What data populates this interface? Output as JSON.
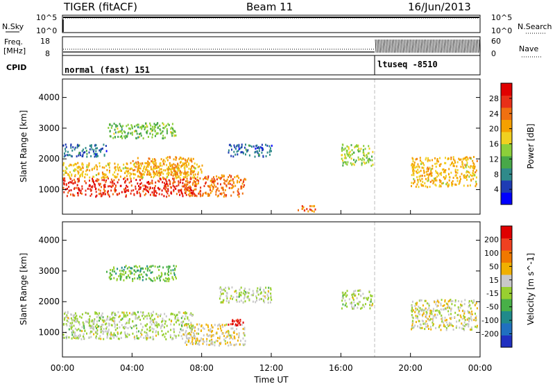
{
  "header": {
    "radar": "TIGER (fitACF)",
    "beam": "Beam 11",
    "date": "16/Jun/2013"
  },
  "param_panels": {
    "nsky": {
      "label": "N.Sky",
      "ticks": [
        "10^5",
        "10^0"
      ]
    },
    "nsearch": {
      "label": "N.Search"
    },
    "freq": {
      "label_line1": "Freq.",
      "label_line2": "[MHz]",
      "ticks": [
        "18",
        "8"
      ]
    },
    "nave": {
      "label": "Nave",
      "ticks": [
        "60",
        "0"
      ]
    },
    "cpid": {
      "label": "CPID",
      "segments": [
        {
          "name": "normal (fast) 151",
          "start_hour": 0.0
        },
        {
          "name": "ltuseq -8510",
          "start_hour": 18.0
        }
      ]
    }
  },
  "x_axis": {
    "label": "Time UT",
    "ticks": [
      "00:00",
      "04:00",
      "08:00",
      "12:00",
      "16:00",
      "20:00",
      "00:00"
    ]
  },
  "chart_data": [
    {
      "type": "heatmap",
      "title": "Power",
      "ylabel": "Slant Range [km]",
      "xlabel": "Time UT",
      "x_range_hours": [
        0,
        24
      ],
      "y_range_km": [
        200,
        4600
      ],
      "y_ticks": [
        "1000",
        "2000",
        "3000",
        "4000"
      ],
      "colorbar": {
        "label": "Power [dB]",
        "ticks": [
          "28",
          "24",
          "20",
          "16",
          "12",
          "8",
          "4"
        ],
        "colors": [
          "#0000ff",
          "#1e3cb4",
          "#2f8a8a",
          "#48a848",
          "#8ccf3a",
          "#f0d020",
          "#f5a000",
          "#f07010",
          "#e83018",
          "#e00000"
        ],
        "range": [
          0,
          30
        ]
      },
      "regions": [
        {
          "t": [
            0.0,
            7.5
          ],
          "r": [
            800,
            1400
          ],
          "value": 26
        },
        {
          "t": [
            0.0,
            8.0
          ],
          "r": [
            1400,
            1900
          ],
          "value": 18
        },
        {
          "t": [
            0.0,
            2.5
          ],
          "r": [
            2100,
            2500
          ],
          "value": 6
        },
        {
          "t": [
            4.0,
            7.5
          ],
          "r": [
            1500,
            2100
          ],
          "value": 20
        },
        {
          "t": [
            7.0,
            10.5
          ],
          "r": [
            800,
            1500
          ],
          "value": 22
        },
        {
          "t": [
            2.5,
            6.5
          ],
          "r": [
            2700,
            3200
          ],
          "value": 12
        },
        {
          "t": [
            9.5,
            12.0
          ],
          "r": [
            2100,
            2500
          ],
          "value": 6
        },
        {
          "t": [
            13.5,
            14.5
          ],
          "r": [
            300,
            500
          ],
          "value": 22
        },
        {
          "t": [
            16.0,
            17.8
          ],
          "r": [
            1800,
            2500
          ],
          "value": 14
        },
        {
          "t": [
            20.0,
            23.8
          ],
          "r": [
            1100,
            2100
          ],
          "value": 18
        }
      ]
    },
    {
      "type": "heatmap",
      "title": "Velocity",
      "ylabel": "Slant Range [km]",
      "xlabel": "Time UT",
      "x_range_hours": [
        0,
        24
      ],
      "y_range_km": [
        200,
        4600
      ],
      "y_ticks": [
        "1000",
        "2000",
        "3000",
        "4000"
      ],
      "colorbar": {
        "label": "Velocity [m s^-1]",
        "ticks": [
          "200",
          "100",
          "50",
          "15",
          "-15",
          "-50",
          "-100",
          "-200"
        ],
        "colors": [
          "#2030c0",
          "#2070c0",
          "#208a8a",
          "#48b048",
          "#98d030",
          "#c8c8c8",
          "#f0b000",
          "#f07800",
          "#f04020",
          "#e00000"
        ],
        "range": [
          -250,
          250
        ]
      },
      "regions": [
        {
          "t": [
            0.0,
            7.5
          ],
          "r": [
            800,
            1700
          ],
          "value": 0
        },
        {
          "t": [
            7.0,
            10.5
          ],
          "r": [
            600,
            1300
          ],
          "value": 40
        },
        {
          "t": [
            9.5,
            10.5
          ],
          "r": [
            1250,
            1450
          ],
          "value": 210
        },
        {
          "t": [
            2.5,
            6.5
          ],
          "r": [
            2700,
            3200
          ],
          "value": -60
        },
        {
          "t": [
            9.0,
            12.0
          ],
          "r": [
            2000,
            2500
          ],
          "value": 0
        },
        {
          "t": [
            16.0,
            17.8
          ],
          "r": [
            1800,
            2400
          ],
          "value": 0
        },
        {
          "t": [
            20.0,
            23.8
          ],
          "r": [
            1100,
            2100
          ],
          "value": 20
        }
      ]
    }
  ]
}
